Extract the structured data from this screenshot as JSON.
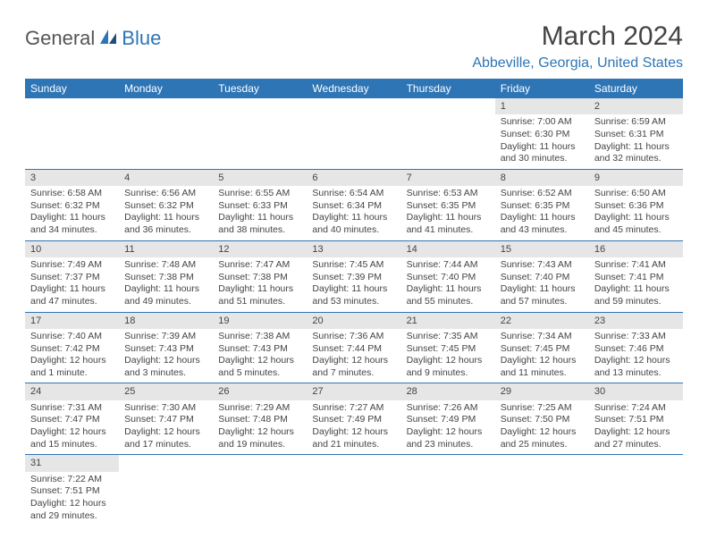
{
  "logo": {
    "part1": "General",
    "part2": "Blue"
  },
  "title": "March 2024",
  "location": "Abbeville, Georgia, United States",
  "colors": {
    "header_bg": "#2e75b6",
    "daynum_bg": "#e7e6e6",
    "accent": "#2e75b6"
  },
  "weekdays": [
    "Sunday",
    "Monday",
    "Tuesday",
    "Wednesday",
    "Thursday",
    "Friday",
    "Saturday"
  ],
  "weeks": [
    [
      {
        "empty": true
      },
      {
        "empty": true
      },
      {
        "empty": true
      },
      {
        "empty": true
      },
      {
        "empty": true
      },
      {
        "d": "1",
        "sr": "Sunrise: 7:00 AM",
        "ss": "Sunset: 6:30 PM",
        "dl1": "Daylight: 11 hours",
        "dl2": "and 30 minutes."
      },
      {
        "d": "2",
        "sr": "Sunrise: 6:59 AM",
        "ss": "Sunset: 6:31 PM",
        "dl1": "Daylight: 11 hours",
        "dl2": "and 32 minutes."
      }
    ],
    [
      {
        "d": "3",
        "sr": "Sunrise: 6:58 AM",
        "ss": "Sunset: 6:32 PM",
        "dl1": "Daylight: 11 hours",
        "dl2": "and 34 minutes."
      },
      {
        "d": "4",
        "sr": "Sunrise: 6:56 AM",
        "ss": "Sunset: 6:32 PM",
        "dl1": "Daylight: 11 hours",
        "dl2": "and 36 minutes."
      },
      {
        "d": "5",
        "sr": "Sunrise: 6:55 AM",
        "ss": "Sunset: 6:33 PM",
        "dl1": "Daylight: 11 hours",
        "dl2": "and 38 minutes."
      },
      {
        "d": "6",
        "sr": "Sunrise: 6:54 AM",
        "ss": "Sunset: 6:34 PM",
        "dl1": "Daylight: 11 hours",
        "dl2": "and 40 minutes."
      },
      {
        "d": "7",
        "sr": "Sunrise: 6:53 AM",
        "ss": "Sunset: 6:35 PM",
        "dl1": "Daylight: 11 hours",
        "dl2": "and 41 minutes."
      },
      {
        "d": "8",
        "sr": "Sunrise: 6:52 AM",
        "ss": "Sunset: 6:35 PM",
        "dl1": "Daylight: 11 hours",
        "dl2": "and 43 minutes."
      },
      {
        "d": "9",
        "sr": "Sunrise: 6:50 AM",
        "ss": "Sunset: 6:36 PM",
        "dl1": "Daylight: 11 hours",
        "dl2": "and 45 minutes."
      }
    ],
    [
      {
        "d": "10",
        "sr": "Sunrise: 7:49 AM",
        "ss": "Sunset: 7:37 PM",
        "dl1": "Daylight: 11 hours",
        "dl2": "and 47 minutes."
      },
      {
        "d": "11",
        "sr": "Sunrise: 7:48 AM",
        "ss": "Sunset: 7:38 PM",
        "dl1": "Daylight: 11 hours",
        "dl2": "and 49 minutes."
      },
      {
        "d": "12",
        "sr": "Sunrise: 7:47 AM",
        "ss": "Sunset: 7:38 PM",
        "dl1": "Daylight: 11 hours",
        "dl2": "and 51 minutes."
      },
      {
        "d": "13",
        "sr": "Sunrise: 7:45 AM",
        "ss": "Sunset: 7:39 PM",
        "dl1": "Daylight: 11 hours",
        "dl2": "and 53 minutes."
      },
      {
        "d": "14",
        "sr": "Sunrise: 7:44 AM",
        "ss": "Sunset: 7:40 PM",
        "dl1": "Daylight: 11 hours",
        "dl2": "and 55 minutes."
      },
      {
        "d": "15",
        "sr": "Sunrise: 7:43 AM",
        "ss": "Sunset: 7:40 PM",
        "dl1": "Daylight: 11 hours",
        "dl2": "and 57 minutes."
      },
      {
        "d": "16",
        "sr": "Sunrise: 7:41 AM",
        "ss": "Sunset: 7:41 PM",
        "dl1": "Daylight: 11 hours",
        "dl2": "and 59 minutes."
      }
    ],
    [
      {
        "d": "17",
        "sr": "Sunrise: 7:40 AM",
        "ss": "Sunset: 7:42 PM",
        "dl1": "Daylight: 12 hours",
        "dl2": "and 1 minute."
      },
      {
        "d": "18",
        "sr": "Sunrise: 7:39 AM",
        "ss": "Sunset: 7:43 PM",
        "dl1": "Daylight: 12 hours",
        "dl2": "and 3 minutes."
      },
      {
        "d": "19",
        "sr": "Sunrise: 7:38 AM",
        "ss": "Sunset: 7:43 PM",
        "dl1": "Daylight: 12 hours",
        "dl2": "and 5 minutes."
      },
      {
        "d": "20",
        "sr": "Sunrise: 7:36 AM",
        "ss": "Sunset: 7:44 PM",
        "dl1": "Daylight: 12 hours",
        "dl2": "and 7 minutes."
      },
      {
        "d": "21",
        "sr": "Sunrise: 7:35 AM",
        "ss": "Sunset: 7:45 PM",
        "dl1": "Daylight: 12 hours",
        "dl2": "and 9 minutes."
      },
      {
        "d": "22",
        "sr": "Sunrise: 7:34 AM",
        "ss": "Sunset: 7:45 PM",
        "dl1": "Daylight: 12 hours",
        "dl2": "and 11 minutes."
      },
      {
        "d": "23",
        "sr": "Sunrise: 7:33 AM",
        "ss": "Sunset: 7:46 PM",
        "dl1": "Daylight: 12 hours",
        "dl2": "and 13 minutes."
      }
    ],
    [
      {
        "d": "24",
        "sr": "Sunrise: 7:31 AM",
        "ss": "Sunset: 7:47 PM",
        "dl1": "Daylight: 12 hours",
        "dl2": "and 15 minutes."
      },
      {
        "d": "25",
        "sr": "Sunrise: 7:30 AM",
        "ss": "Sunset: 7:47 PM",
        "dl1": "Daylight: 12 hours",
        "dl2": "and 17 minutes."
      },
      {
        "d": "26",
        "sr": "Sunrise: 7:29 AM",
        "ss": "Sunset: 7:48 PM",
        "dl1": "Daylight: 12 hours",
        "dl2": "and 19 minutes."
      },
      {
        "d": "27",
        "sr": "Sunrise: 7:27 AM",
        "ss": "Sunset: 7:49 PM",
        "dl1": "Daylight: 12 hours",
        "dl2": "and 21 minutes."
      },
      {
        "d": "28",
        "sr": "Sunrise: 7:26 AM",
        "ss": "Sunset: 7:49 PM",
        "dl1": "Daylight: 12 hours",
        "dl2": "and 23 minutes."
      },
      {
        "d": "29",
        "sr": "Sunrise: 7:25 AM",
        "ss": "Sunset: 7:50 PM",
        "dl1": "Daylight: 12 hours",
        "dl2": "and 25 minutes."
      },
      {
        "d": "30",
        "sr": "Sunrise: 7:24 AM",
        "ss": "Sunset: 7:51 PM",
        "dl1": "Daylight: 12 hours",
        "dl2": "and 27 minutes."
      }
    ],
    [
      {
        "d": "31",
        "sr": "Sunrise: 7:22 AM",
        "ss": "Sunset: 7:51 PM",
        "dl1": "Daylight: 12 hours",
        "dl2": "and 29 minutes."
      },
      {
        "empty": true
      },
      {
        "empty": true
      },
      {
        "empty": true
      },
      {
        "empty": true
      },
      {
        "empty": true
      },
      {
        "empty": true
      }
    ]
  ]
}
